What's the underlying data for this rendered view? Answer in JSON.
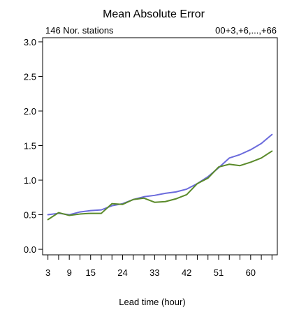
{
  "chart_data": {
    "type": "line",
    "title": "Mean Absolute Error",
    "subtitle_left": "146 Nor. stations",
    "subtitle_right": "00+3,+6,...,+66",
    "xlabel": "Lead time (hour)",
    "ylabel": "",
    "x": [
      3,
      6,
      9,
      12,
      15,
      18,
      21,
      24,
      27,
      30,
      33,
      36,
      39,
      42,
      45,
      48,
      51,
      54,
      57,
      60,
      63,
      66
    ],
    "x_ticks": [
      3,
      6,
      9,
      12,
      15,
      18,
      21,
      24,
      27,
      30,
      33,
      36,
      39,
      42,
      45,
      48,
      51,
      54,
      57,
      60,
      63,
      66
    ],
    "x_tick_labels": [
      "3",
      "",
      "9",
      "",
      "15",
      "",
      "",
      "24",
      "",
      "",
      "33",
      "",
      "",
      "42",
      "",
      "",
      "51",
      "",
      "",
      "60",
      "",
      ""
    ],
    "xlim": [
      1.5,
      67.5
    ],
    "ylim": [
      -0.08,
      3.06
    ],
    "y_ticks": [
      0.0,
      0.5,
      1.0,
      1.5,
      2.0,
      2.5,
      3.0
    ],
    "y_tick_labels": [
      "0.0",
      "0.5",
      "1.0",
      "1.5",
      "2.0",
      "2.5",
      "3.0"
    ],
    "grid": false,
    "legend": "none",
    "series": [
      {
        "color": "#6b6bdc",
        "values": [
          0.5,
          0.52,
          0.5,
          0.54,
          0.56,
          0.57,
          0.63,
          0.66,
          0.72,
          0.76,
          0.78,
          0.81,
          0.83,
          0.87,
          0.95,
          1.05,
          1.18,
          1.32,
          1.37,
          1.44,
          1.53,
          1.66
        ]
      },
      {
        "color": "#5a8a2a",
        "values": [
          0.43,
          0.53,
          0.49,
          0.51,
          0.52,
          0.52,
          0.66,
          0.65,
          0.72,
          0.74,
          0.68,
          0.69,
          0.73,
          0.79,
          0.95,
          1.03,
          1.19,
          1.23,
          1.21,
          1.26,
          1.32,
          1.42
        ]
      }
    ]
  }
}
